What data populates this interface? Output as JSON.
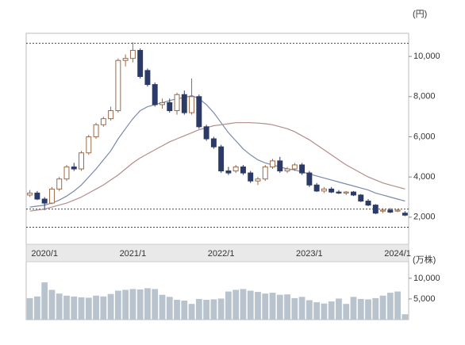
{
  "chart_data": {
    "type": "candlestick",
    "unit_label": "(円)",
    "categories": [
      null,
      null,
      "2020/1",
      null,
      null,
      null,
      null,
      null,
      null,
      null,
      null,
      null,
      null,
      null,
      "2021/1",
      null,
      null,
      null,
      null,
      null,
      null,
      null,
      null,
      null,
      null,
      null,
      "2022/1",
      null,
      null,
      null,
      null,
      null,
      null,
      null,
      null,
      null,
      null,
      null,
      "2023/1",
      null,
      null,
      null,
      null,
      null,
      null,
      null,
      null,
      null,
      null,
      null,
      "2024/1",
      null
    ],
    "open": [
      3100,
      3200,
      2900,
      2700,
      3400,
      3900,
      4500,
      4400,
      5200,
      6000,
      6600,
      6900,
      7300,
      9800,
      9900,
      10300,
      9300,
      8600,
      7600,
      7700,
      7300,
      8100,
      7200,
      8000,
      6500,
      5900,
      5500,
      4300,
      4300,
      4500,
      4200,
      3800,
      3900,
      4500,
      4800,
      4300,
      4400,
      4600,
      4200,
      3600,
      3300,
      3400,
      3250,
      3200,
      3250,
      3100,
      2800,
      2600,
      2300,
      2350,
      2300,
      2200
    ],
    "high": [
      3350,
      3300,
      3000,
      3500,
      4000,
      4600,
      4700,
      5300,
      6100,
      6700,
      7000,
      7500,
      9900,
      10100,
      10700,
      10400,
      9400,
      8700,
      7900,
      7900,
      8200,
      8300,
      8900,
      8100,
      6600,
      6000,
      5600,
      4500,
      4600,
      4600,
      4300,
      4000,
      4600,
      4900,
      5000,
      4500,
      4700,
      4700,
      4300,
      3700,
      3500,
      3500,
      3350,
      3300,
      3300,
      3150,
      2900,
      2650,
      2450,
      2450,
      2400,
      2300
    ],
    "low": [
      3000,
      2850,
      2350,
      2650,
      3300,
      3800,
      4300,
      4300,
      5100,
      5900,
      6500,
      6800,
      7200,
      9500,
      9700,
      8900,
      8500,
      7500,
      7400,
      7200,
      7100,
      7100,
      7100,
      6400,
      5800,
      5400,
      4200,
      4100,
      4200,
      4100,
      3700,
      3600,
      3800,
      4400,
      4200,
      4200,
      4300,
      4100,
      3500,
      3250,
      3200,
      3200,
      3150,
      3100,
      3050,
      2750,
      2550,
      2150,
      2200,
      2200,
      2250,
      2050
    ],
    "close": [
      3200,
      2900,
      2700,
      3400,
      3900,
      4500,
      4400,
      5200,
      6000,
      6600,
      6900,
      7300,
      9800,
      9900,
      10300,
      9000,
      8600,
      7600,
      7700,
      7300,
      8100,
      7200,
      8000,
      6500,
      5900,
      5500,
      4300,
      4200,
      4500,
      4200,
      3800,
      3900,
      4500,
      4800,
      4300,
      4400,
      4600,
      4200,
      3600,
      3300,
      3400,
      3250,
      3200,
      3250,
      3100,
      2800,
      2600,
      2200,
      2350,
      2250,
      2350,
      2100
    ],
    "up_color": "#9c6a4a",
    "down_color": "#2b3a67",
    "moving_averages": [
      {
        "color": "#7b88ad",
        "values": [
          2500,
          2550,
          2600,
          2700,
          2850,
          3050,
          3300,
          3600,
          4000,
          4400,
          4850,
          5300,
          5900,
          6400,
          6900,
          7300,
          7500,
          7600,
          7700,
          7800,
          7900,
          7950,
          8050,
          7900,
          7600,
          7200,
          6700,
          6200,
          5800,
          5400,
          5100,
          4850,
          4700,
          4600,
          4500,
          4400,
          4350,
          4250,
          4150,
          4050,
          3950,
          3850,
          3750,
          3650,
          3550,
          3450,
          3350,
          3200,
          3100,
          3000,
          2900,
          2800
        ]
      },
      {
        "color": "#b48c8c",
        "values": [
          2300,
          2350,
          2400,
          2500,
          2600,
          2700,
          2850,
          3000,
          3200,
          3400,
          3600,
          3850,
          4100,
          4400,
          4700,
          4950,
          5150,
          5350,
          5550,
          5750,
          5900,
          6050,
          6200,
          6350,
          6450,
          6550,
          6600,
          6650,
          6700,
          6700,
          6700,
          6680,
          6650,
          6600,
          6500,
          6400,
          6250,
          6050,
          5850,
          5600,
          5350,
          5100,
          4850,
          4600,
          4400,
          4200,
          4000,
          3850,
          3700,
          3600,
          3500,
          3400
        ]
      }
    ],
    "reference_lines": [
      10650,
      2400,
      1500
    ],
    "ylim": [
      650,
      11150
    ],
    "yticks": [
      {
        "value": 2000,
        "label": "2,000"
      },
      {
        "value": 4000,
        "label": "4,000"
      },
      {
        "value": 6000,
        "label": "6,000"
      },
      {
        "value": 8000,
        "label": "8,000"
      },
      {
        "value": 10000,
        "label": "10,000"
      }
    ],
    "volume": {
      "unit_label": "(万株)",
      "color": "#b9c3ce",
      "values": [
        5200,
        5600,
        9000,
        7200,
        6300,
        5800,
        5600,
        5400,
        5300,
        5800,
        5600,
        6200,
        7000,
        7200,
        7400,
        7300,
        7600,
        7400,
        6000,
        5500,
        4800,
        4600,
        3800,
        5000,
        4800,
        4900,
        5100,
        6800,
        7200,
        7400,
        7000,
        6700,
        6300,
        6500,
        6000,
        6100,
        5200,
        5500,
        4700,
        4200,
        3900,
        4400,
        5100,
        3800,
        5500,
        5000,
        4900,
        5200,
        5800,
        6500,
        6800,
        1300
      ],
      "ylim": [
        0,
        14000
      ],
      "yticks": [
        {
          "value": 5000,
          "label": "5,000"
        },
        {
          "value": 10000,
          "label": "10,000"
        }
      ]
    }
  }
}
